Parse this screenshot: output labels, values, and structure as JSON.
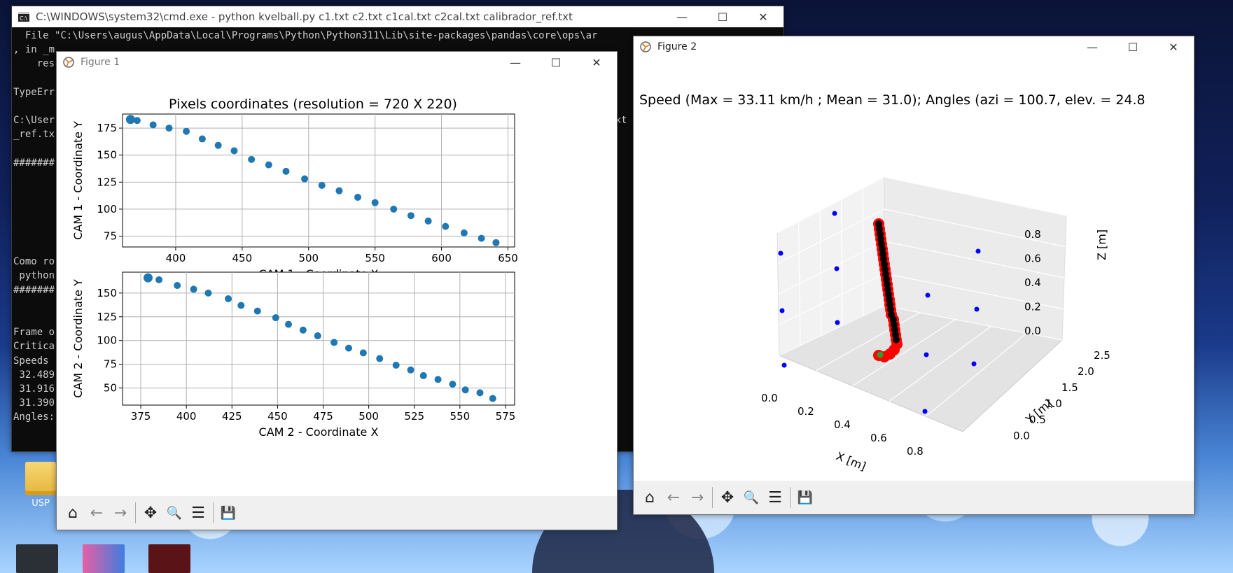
{
  "cmd": {
    "title": "C:\\WINDOWS\\system32\\cmd.exe - python  kvelball.py c1.txt c2.txt c1cal.txt c2cal.txt calibrador_ref.txt",
    "lines": [
      "  File \"C:\\Users\\augus\\AppData\\Local\\Programs\\Python\\Python311\\Lib\\site-packages\\pandas\\core\\ops\\ar",
      ", in _m",
      "    res",
      "",
      "TypeErr",
      "",
      "C:\\User                                                                                              txt",
      "_ref.tx",
      "",
      "#######",
      "",
      "",
      "",
      "",
      "",
      "",
      "Como ro",
      " python",
      "#######",
      "",
      "",
      "Frame o",
      "Critica",
      "Speeds",
      " 32.489",
      " 31.916",
      " 31.390",
      "Angles:"
    ]
  },
  "desktop": {
    "folder_label": "USP"
  },
  "figure1": {
    "title": "Figure 1",
    "chart_data": [
      {
        "type": "scatter",
        "title": "Pixels coordinates (resolution = 720 X 220)",
        "xlabel": "CAM 1 - Coordinate X",
        "ylabel": "CAM 1 - Coordinate Y",
        "xlim": [
          360,
          655
        ],
        "ylim": [
          65,
          188
        ],
        "xticks": [
          400,
          450,
          500,
          550,
          600,
          650
        ],
        "yticks": [
          75,
          100,
          125,
          150,
          175
        ],
        "grid": true,
        "x": [
          366,
          371,
          383,
          395,
          408,
          420,
          432,
          444,
          457,
          470,
          483,
          497,
          510,
          523,
          537,
          550,
          564,
          577,
          590,
          603,
          617,
          630,
          641
        ],
        "y": [
          183,
          182,
          178,
          175,
          172,
          165,
          159,
          154,
          146,
          141,
          135,
          128,
          122,
          117,
          111,
          106,
          100,
          94,
          89,
          84,
          78,
          73,
          69
        ],
        "color": "#1f77b4"
      },
      {
        "type": "scatter",
        "title": "",
        "xlabel": "CAM 2 - Coordinate X",
        "ylabel": "CAM 2 - Coordinate Y",
        "xlim": [
          365,
          580
        ],
        "ylim": [
          32,
          172
        ],
        "xticks": [
          375,
          400,
          425,
          450,
          475,
          500,
          525,
          550,
          575
        ],
        "yticks": [
          50,
          75,
          100,
          125,
          150
        ],
        "grid": true,
        "x": [
          379,
          385,
          395,
          404,
          412,
          423,
          430,
          439,
          449,
          456,
          464,
          472,
          481,
          489,
          497,
          506,
          515,
          523,
          530,
          538,
          546,
          553,
          561,
          568
        ],
        "y": [
          166,
          164,
          158,
          154,
          150,
          144,
          137,
          131,
          124,
          117,
          111,
          105,
          98,
          92,
          87,
          81,
          74,
          69,
          63,
          59,
          54,
          48,
          45,
          39
        ],
        "color": "#1f77b4"
      }
    ]
  },
  "figure2": {
    "title": "Figure 2",
    "chart_data": {
      "type": "scatter",
      "title": "Speed (Max = 33.11 km/h ; Mean = 31.0); Angles (azi = 100.7, elev. = 24.8",
      "xlabel": "X [m]",
      "ylabel": "Y [m]",
      "zlabel": "Z [m]",
      "xticks": [
        "0.0",
        "0.2",
        "0.4",
        "0.6",
        "0.8"
      ],
      "yticks": [
        "0.0",
        "0.5",
        "1.0",
        "1.5",
        "2.0",
        "2.5"
      ],
      "zticks": [
        "0.0",
        "0.2",
        "0.4",
        "0.6",
        "0.8"
      ],
      "series": [
        {
          "color": "#0000ff"
        },
        {
          "color": "#ff0000"
        },
        {
          "color": "#000000"
        },
        {
          "color": "#2ca02c"
        }
      ]
    }
  },
  "toolbar": {
    "home": "⌂",
    "back": "←",
    "forward": "→",
    "pan": "✥",
    "zoom": "🔍",
    "configure": "☰",
    "save": "💾"
  }
}
